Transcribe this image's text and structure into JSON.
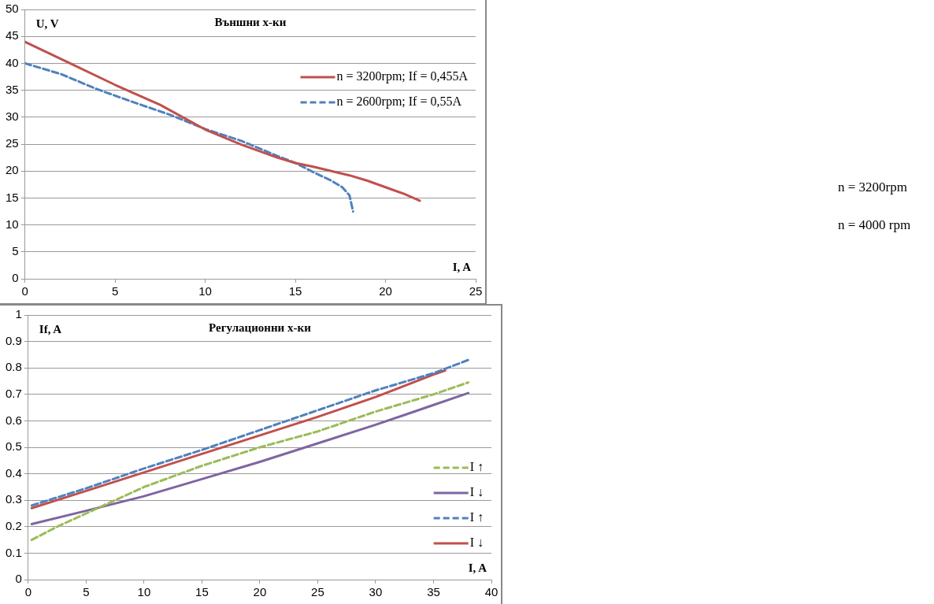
{
  "chart_data": [
    {
      "type": "line",
      "title": "Външни х-ки",
      "xlabel": "I, A",
      "ylabel": "U, V",
      "xlim": [
        0,
        25
      ],
      "xticks": [
        0,
        5,
        10,
        15,
        20,
        25
      ],
      "ylim": [
        0,
        50
      ],
      "yticks": [
        0,
        5,
        10,
        15,
        20,
        25,
        30,
        35,
        40,
        45,
        50
      ],
      "grid": "y",
      "legend": "top right",
      "marker": "none",
      "series": [
        {
          "name": "n = 3200rpm; If = 0,455A",
          "color": "#c0504d",
          "line_style": "solid",
          "x": [
            0,
            2.5,
            5,
            7.5,
            10,
            12,
            14,
            15,
            16,
            17,
            18,
            19,
            20,
            21,
            21.9
          ],
          "values": [
            44,
            40,
            36,
            32.3,
            27.7,
            24.9,
            22.5,
            21.5,
            20.8,
            20,
            19.2,
            18.2,
            17,
            15.8,
            14.5
          ]
        },
        {
          "name": "n = 2600rpm; If = 0,55A",
          "color": "#4f81bd",
          "line_style": "dashed",
          "x": [
            0,
            2,
            4,
            6,
            8,
            10,
            12,
            14,
            15,
            16,
            17,
            17.6,
            18,
            18.2
          ],
          "values": [
            40,
            38,
            35.2,
            32.8,
            30.5,
            27.8,
            25.6,
            22.8,
            21.5,
            19.8,
            18.2,
            17,
            15.5,
            12.5
          ]
        }
      ]
    },
    {
      "type": "line",
      "title": "Регулационни х-ки",
      "xlabel": "I, A",
      "ylabel": "If, A",
      "xlim": [
        0,
        40
      ],
      "xticks": [
        0,
        5,
        10,
        15,
        20,
        25,
        30,
        35,
        40
      ],
      "ylim": [
        0,
        1
      ],
      "yticks": [
        0,
        0.1,
        0.2,
        0.3,
        0.4,
        0.5,
        0.6,
        0.7,
        0.8,
        0.9,
        1
      ],
      "grid": "y",
      "legend": "bottom right",
      "marker": "none",
      "annotations": [
        "n = 3200rpm",
        "n = 4000 rpm"
      ],
      "series": [
        {
          "name": "I ↑",
          "color": "#9bbb59",
          "line_style": "dashed",
          "x": [
            0.3,
            2.5,
            5,
            7.5,
            10,
            15,
            20,
            25,
            30,
            35,
            38
          ],
          "values": [
            0.15,
            0.2,
            0.25,
            0.3,
            0.35,
            0.43,
            0.5,
            0.56,
            0.635,
            0.7,
            0.745
          ]
        },
        {
          "name": "I ↓",
          "color": "#8064a2",
          "line_style": "solid",
          "x": [
            0.3,
            5,
            10,
            15,
            20,
            25,
            30,
            35,
            38
          ],
          "values": [
            0.21,
            0.26,
            0.315,
            0.38,
            0.445,
            0.515,
            0.585,
            0.66,
            0.705
          ]
        },
        {
          "name": "I ↑",
          "color": "#4f81bd",
          "line_style": "dashed",
          "x": [
            0.3,
            5,
            10,
            15,
            20,
            25,
            30,
            35,
            38
          ],
          "values": [
            0.28,
            0.345,
            0.42,
            0.49,
            0.565,
            0.64,
            0.715,
            0.78,
            0.83
          ]
        },
        {
          "name": "I ↓",
          "color": "#c0504d",
          "line_style": "solid",
          "x": [
            0.3,
            5,
            10,
            15,
            20,
            25,
            30,
            35,
            36
          ],
          "values": [
            0.27,
            0.335,
            0.405,
            0.475,
            0.545,
            0.615,
            0.69,
            0.775,
            0.79
          ]
        }
      ]
    }
  ]
}
